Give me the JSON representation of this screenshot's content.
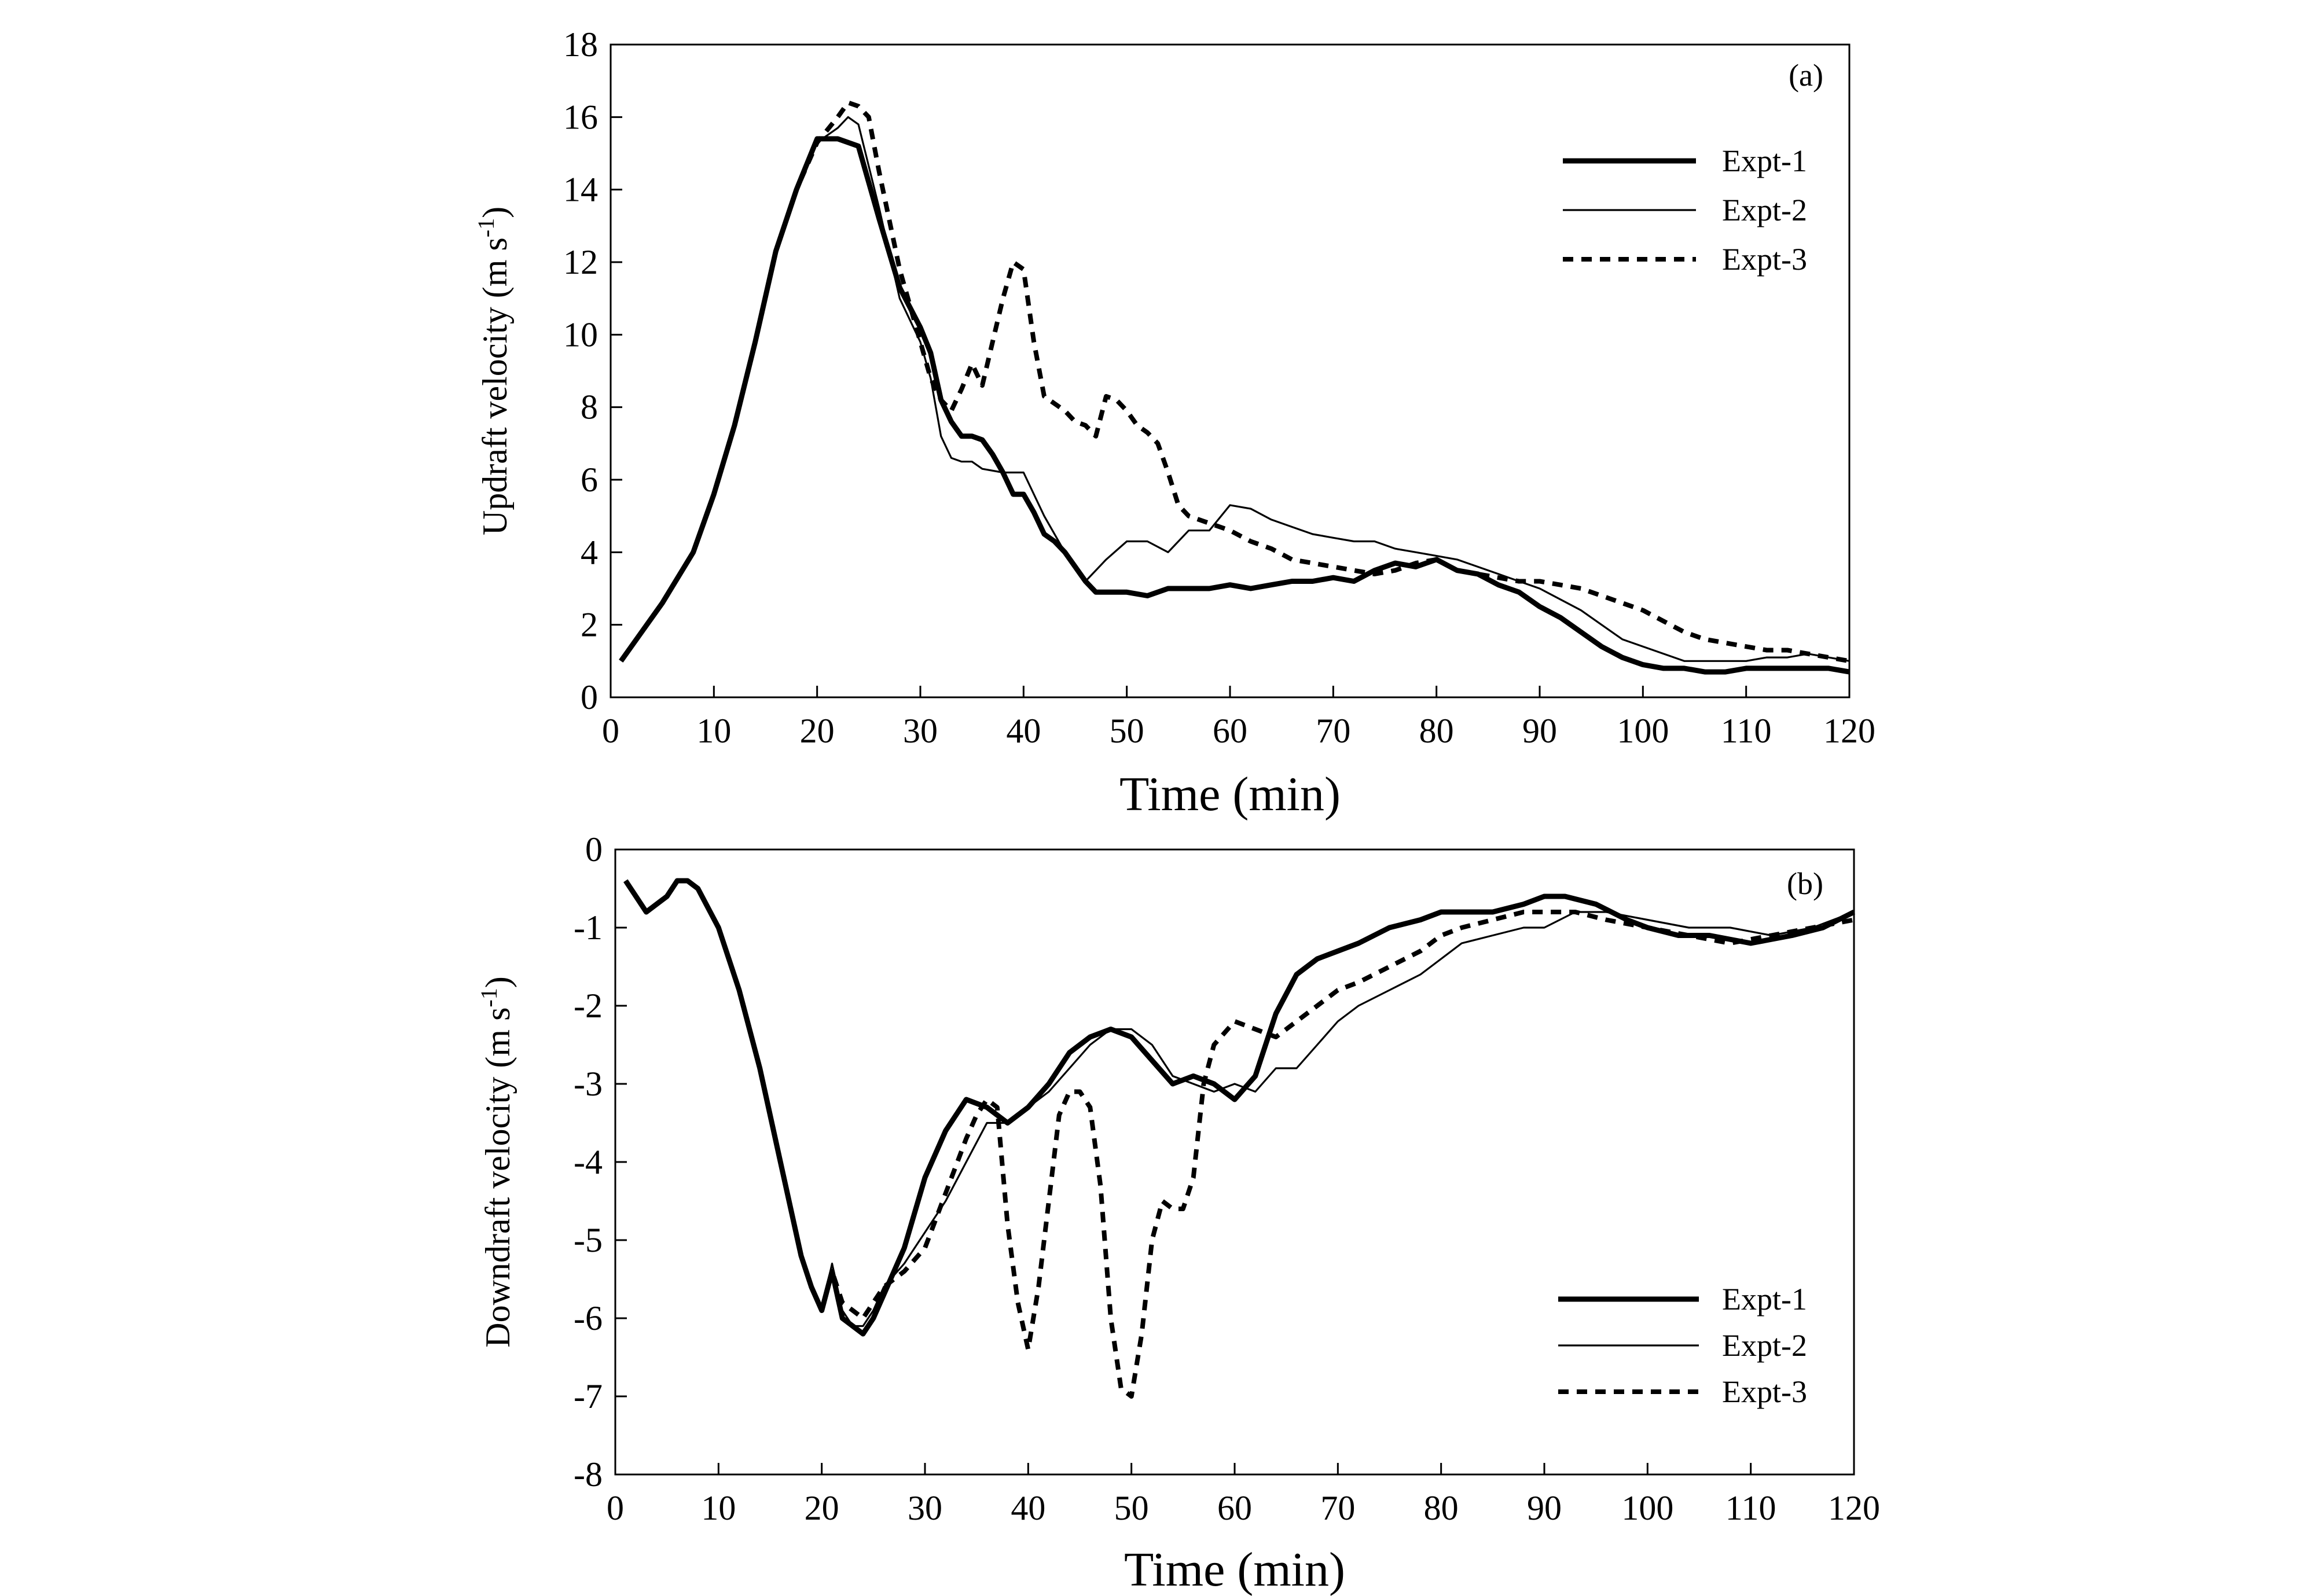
{
  "chart_data": [
    {
      "type": "line",
      "panel_label": "(a)",
      "xlabel": "Time (min)",
      "ylabel_main": "Updraft velocity (m s",
      "ylabel_sup": "-1",
      "ylabel_close": ")",
      "xlim": [
        0,
        120
      ],
      "ylim": [
        0,
        18
      ],
      "xticks": [
        0,
        10,
        20,
        30,
        40,
        50,
        60,
        70,
        80,
        90,
        100,
        110,
        120
      ],
      "xtick_labels": [
        "0",
        "10",
        "20",
        "30",
        "40",
        "50",
        "60",
        "70",
        "80",
        "90",
        "100",
        "110",
        "120"
      ],
      "yticks": [
        0,
        2,
        4,
        6,
        8,
        10,
        12,
        14,
        16,
        18
      ],
      "ytick_labels": [
        "0",
        "2",
        "4",
        "6",
        "8",
        "10",
        "12",
        "14",
        "16",
        "18"
      ],
      "grid": false,
      "legend_position": "top-right",
      "series": [
        {
          "name": "Expt-1",
          "style": "thick",
          "x": [
            1,
            3,
            5,
            8,
            10,
            12,
            14,
            16,
            18,
            20,
            22,
            24,
            26,
            28,
            30,
            31,
            32,
            33,
            34,
            35,
            36,
            37,
            38,
            39,
            40,
            41,
            42,
            43,
            44,
            45,
            46,
            47,
            48,
            50,
            52,
            54,
            56,
            58,
            60,
            62,
            64,
            66,
            68,
            70,
            72,
            74,
            76,
            78,
            80,
            82,
            84,
            86,
            88,
            90,
            92,
            94,
            96,
            98,
            100,
            102,
            104,
            106,
            108,
            110,
            112,
            114,
            116,
            118,
            120
          ],
          "y": [
            1.0,
            1.8,
            2.6,
            4.0,
            5.6,
            7.5,
            9.8,
            12.3,
            14.0,
            15.4,
            15.4,
            15.2,
            13.2,
            11.3,
            10.2,
            9.5,
            8.2,
            7.6,
            7.2,
            7.2,
            7.1,
            6.7,
            6.2,
            5.6,
            5.6,
            5.1,
            4.5,
            4.3,
            4.0,
            3.6,
            3.2,
            2.9,
            2.9,
            2.9,
            2.8,
            3.0,
            3.0,
            3.0,
            3.1,
            3.0,
            3.1,
            3.2,
            3.2,
            3.3,
            3.2,
            3.5,
            3.7,
            3.6,
            3.8,
            3.5,
            3.4,
            3.1,
            2.9,
            2.5,
            2.2,
            1.8,
            1.4,
            1.1,
            0.9,
            0.8,
            0.8,
            0.7,
            0.7,
            0.8,
            0.8,
            0.8,
            0.8,
            0.8,
            0.7
          ]
        },
        {
          "name": "Expt-2",
          "style": "thin",
          "x": [
            1,
            3,
            5,
            8,
            10,
            12,
            14,
            16,
            18,
            20,
            22,
            23,
            24,
            26,
            28,
            30,
            31,
            32,
            33,
            34,
            35,
            36,
            38,
            40,
            42,
            44,
            45,
            46,
            48,
            50,
            52,
            54,
            56,
            58,
            60,
            62,
            64,
            66,
            68,
            70,
            72,
            74,
            76,
            78,
            80,
            82,
            84,
            86,
            88,
            90,
            92,
            94,
            96,
            98,
            100,
            102,
            104,
            106,
            108,
            110,
            112,
            114,
            116,
            118,
            120
          ],
          "y": [
            1.0,
            1.8,
            2.6,
            4.0,
            5.6,
            7.5,
            9.8,
            12.3,
            14.0,
            15.3,
            15.7,
            16.0,
            15.8,
            13.5,
            11.0,
            9.8,
            8.8,
            7.2,
            6.6,
            6.5,
            6.5,
            6.3,
            6.2,
            6.2,
            5.0,
            4.0,
            3.6,
            3.2,
            3.8,
            4.3,
            4.3,
            4.0,
            4.6,
            4.6,
            5.3,
            5.2,
            4.9,
            4.7,
            4.5,
            4.4,
            4.3,
            4.3,
            4.1,
            4.0,
            3.9,
            3.8,
            3.6,
            3.4,
            3.2,
            3.0,
            2.7,
            2.4,
            2.0,
            1.6,
            1.4,
            1.2,
            1.0,
            1.0,
            1.0,
            1.0,
            1.1,
            1.1,
            1.2,
            1.1,
            1.0
          ]
        },
        {
          "name": "Expt-3",
          "style": "dashed",
          "x": [
            1,
            3,
            5,
            8,
            10,
            12,
            14,
            16,
            18,
            20,
            22,
            23,
            24,
            25,
            26,
            28,
            30,
            31,
            32,
            33,
            34,
            35,
            36,
            37,
            38,
            39,
            40,
            41,
            42,
            43,
            44,
            45,
            46,
            47,
            48,
            49,
            50,
            51,
            52,
            53,
            54,
            55,
            56,
            58,
            60,
            62,
            64,
            66,
            68,
            70,
            72,
            74,
            76,
            78,
            80,
            82,
            84,
            86,
            88,
            90,
            92,
            94,
            96,
            98,
            100,
            102,
            104,
            106,
            108,
            110,
            112,
            114,
            116,
            118,
            120
          ],
          "y": [
            1.0,
            1.8,
            2.6,
            4.0,
            5.6,
            7.5,
            9.8,
            12.3,
            14.0,
            15.3,
            16.0,
            16.4,
            16.3,
            16.0,
            14.5,
            11.8,
            9.8,
            8.8,
            8.2,
            7.9,
            8.5,
            9.2,
            8.6,
            9.8,
            11.0,
            12.0,
            11.8,
            9.8,
            8.3,
            8.1,
            7.9,
            7.6,
            7.5,
            7.2,
            8.3,
            8.2,
            7.9,
            7.5,
            7.3,
            7.0,
            6.2,
            5.3,
            5.0,
            4.8,
            4.6,
            4.3,
            4.1,
            3.8,
            3.7,
            3.6,
            3.5,
            3.4,
            3.5,
            3.7,
            3.8,
            3.5,
            3.4,
            3.3,
            3.2,
            3.2,
            3.1,
            3.0,
            2.8,
            2.6,
            2.4,
            2.1,
            1.8,
            1.6,
            1.5,
            1.4,
            1.3,
            1.3,
            1.2,
            1.1,
            1.0
          ]
        }
      ]
    },
    {
      "type": "line",
      "panel_label": "(b)",
      "xlabel": "Time (min)",
      "ylabel_main": "Downdraft velocity (m s",
      "ylabel_sup": "-1",
      "ylabel_close": ")",
      "xlim": [
        0,
        120
      ],
      "ylim": [
        -8,
        0
      ],
      "xticks": [
        0,
        10,
        20,
        30,
        40,
        50,
        60,
        70,
        80,
        90,
        100,
        110,
        120
      ],
      "xtick_labels": [
        "0",
        "10",
        "20",
        "30",
        "40",
        "50",
        "60",
        "70",
        "80",
        "90",
        "100",
        "110",
        "120"
      ],
      "yticks": [
        0,
        -1,
        -2,
        -3,
        -4,
        -5,
        -6,
        -7,
        -8
      ],
      "ytick_labels": [
        "0",
        "-1",
        "-2",
        "-3",
        "-4",
        "-5",
        "-6",
        "-7",
        "-8"
      ],
      "grid": false,
      "legend_position": "bottom-right",
      "series": [
        {
          "name": "Expt-1",
          "style": "thick",
          "x": [
            1,
            2,
            3,
            5,
            6,
            7,
            8,
            10,
            12,
            14,
            16,
            18,
            19,
            20,
            21,
            22,
            23,
            24,
            25,
            26,
            28,
            30,
            32,
            34,
            36,
            38,
            40,
            42,
            44,
            46,
            48,
            50,
            52,
            54,
            56,
            58,
            60,
            62,
            64,
            66,
            68,
            70,
            72,
            75,
            78,
            80,
            82,
            85,
            88,
            90,
            92,
            95,
            98,
            100,
            103,
            106,
            110,
            114,
            117,
            120
          ],
          "y": [
            -0.4,
            -0.6,
            -0.8,
            -0.6,
            -0.4,
            -0.4,
            -0.5,
            -1.0,
            -1.8,
            -2.8,
            -4.0,
            -5.2,
            -5.6,
            -5.9,
            -5.4,
            -6.0,
            -6.1,
            -6.2,
            -6.0,
            -5.7,
            -5.1,
            -4.2,
            -3.6,
            -3.2,
            -3.3,
            -3.5,
            -3.3,
            -3.0,
            -2.6,
            -2.4,
            -2.3,
            -2.4,
            -2.7,
            -3.0,
            -2.9,
            -3.0,
            -3.2,
            -2.9,
            -2.1,
            -1.6,
            -1.4,
            -1.3,
            -1.2,
            -1.0,
            -0.9,
            -0.8,
            -0.8,
            -0.8,
            -0.7,
            -0.6,
            -0.6,
            -0.7,
            -0.9,
            -1.0,
            -1.1,
            -1.1,
            -1.2,
            -1.1,
            -1.0,
            -0.8
          ]
        },
        {
          "name": "Expt-2",
          "style": "thin",
          "x": [
            1,
            2,
            3,
            5,
            6,
            7,
            8,
            10,
            12,
            14,
            16,
            18,
            19,
            20,
            21,
            22,
            23,
            24,
            25,
            26,
            28,
            30,
            32,
            34,
            36,
            38,
            40,
            42,
            44,
            46,
            48,
            50,
            52,
            54,
            56,
            58,
            60,
            62,
            64,
            66,
            68,
            70,
            72,
            75,
            78,
            80,
            82,
            85,
            88,
            90,
            93,
            96,
            100,
            104,
            108,
            112,
            116,
            120
          ],
          "y": [
            -0.4,
            -0.6,
            -0.8,
            -0.6,
            -0.4,
            -0.4,
            -0.5,
            -1.0,
            -1.8,
            -2.8,
            -4.0,
            -5.2,
            -5.6,
            -5.9,
            -5.3,
            -5.9,
            -6.1,
            -6.1,
            -5.9,
            -5.6,
            -5.3,
            -4.9,
            -4.5,
            -4.0,
            -3.5,
            -3.5,
            -3.3,
            -3.1,
            -2.8,
            -2.5,
            -2.3,
            -2.3,
            -2.5,
            -2.9,
            -3.0,
            -3.1,
            -3.0,
            -3.1,
            -2.8,
            -2.8,
            -2.5,
            -2.2,
            -2.0,
            -1.8,
            -1.6,
            -1.4,
            -1.2,
            -1.1,
            -1.0,
            -1.0,
            -0.8,
            -0.8,
            -0.9,
            -1.0,
            -1.0,
            -1.1,
            -1.0,
            -0.8
          ]
        },
        {
          "name": "Expt-3",
          "style": "dashed",
          "x": [
            1,
            2,
            3,
            5,
            6,
            7,
            8,
            10,
            12,
            14,
            16,
            18,
            19,
            20,
            21,
            22,
            23,
            24,
            25,
            26,
            28,
            30,
            32,
            34,
            35,
            36,
            37,
            38,
            39,
            40,
            41,
            42,
            43,
            44,
            45,
            46,
            47,
            48,
            49,
            50,
            51,
            52,
            53,
            54,
            55,
            56,
            57,
            58,
            60,
            62,
            64,
            66,
            68,
            70,
            72,
            75,
            78,
            80,
            82,
            85,
            88,
            90,
            93,
            96,
            100,
            104,
            108,
            112,
            116,
            120
          ],
          "y": [
            -0.4,
            -0.6,
            -0.8,
            -0.6,
            -0.4,
            -0.4,
            -0.5,
            -1.0,
            -1.8,
            -2.8,
            -4.0,
            -5.2,
            -5.6,
            -5.9,
            -5.4,
            -5.8,
            -5.9,
            -6.0,
            -5.8,
            -5.6,
            -5.4,
            -5.1,
            -4.4,
            -3.7,
            -3.4,
            -3.2,
            -3.3,
            -4.8,
            -5.8,
            -6.4,
            -5.6,
            -4.5,
            -3.4,
            -3.1,
            -3.1,
            -3.3,
            -4.3,
            -6.0,
            -6.9,
            -7.0,
            -6.2,
            -5.0,
            -4.5,
            -4.6,
            -4.6,
            -4.2,
            -3.0,
            -2.5,
            -2.2,
            -2.3,
            -2.4,
            -2.2,
            -2.0,
            -1.8,
            -1.7,
            -1.5,
            -1.3,
            -1.1,
            -1.0,
            -0.9,
            -0.8,
            -0.8,
            -0.8,
            -0.9,
            -1.0,
            -1.1,
            -1.2,
            -1.1,
            -1.0,
            -0.9
          ]
        }
      ]
    }
  ]
}
